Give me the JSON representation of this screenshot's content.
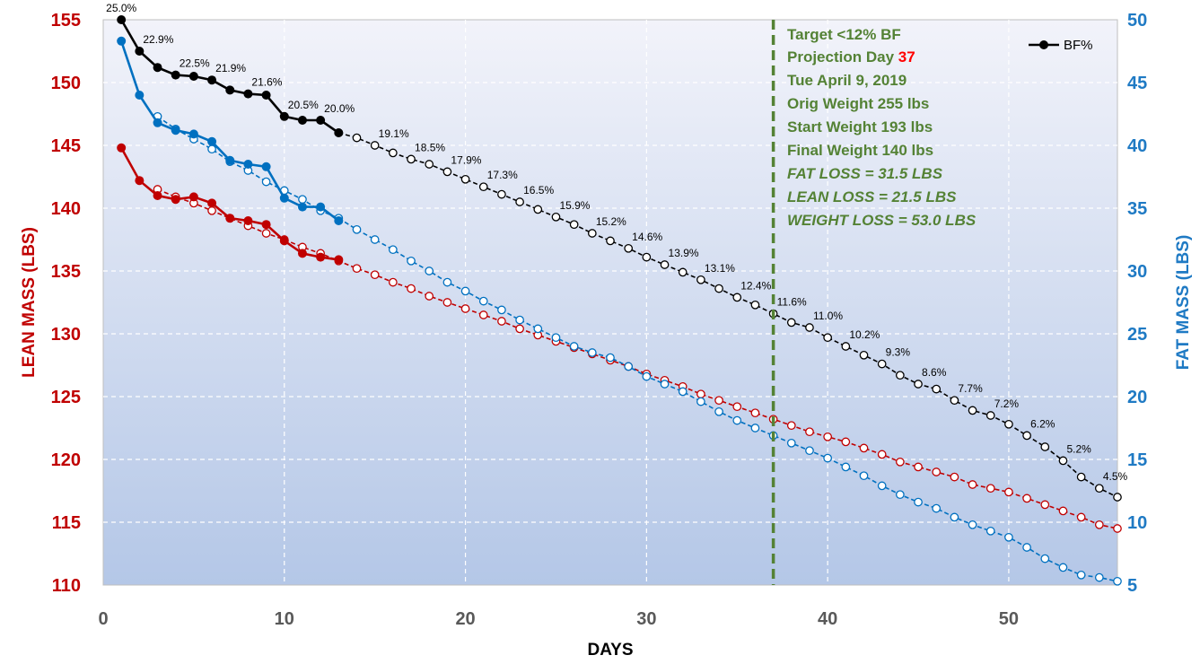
{
  "chart_data": {
    "type": "line",
    "xlabel": "DAYS",
    "ylabel_left": "LEAN MASS (LBS)",
    "ylabel_right": "FAT MASS (LBS)",
    "xlim": [
      0,
      56
    ],
    "ylim_left": [
      110,
      155
    ],
    "ylim_right": [
      5,
      50
    ],
    "x_ticks": [
      0,
      10,
      20,
      30,
      40,
      50
    ],
    "y_ticks_left": [
      110,
      115,
      120,
      125,
      130,
      135,
      140,
      145,
      150,
      155
    ],
    "y_ticks_right": [
      5,
      10,
      15,
      20,
      25,
      30,
      35,
      40,
      45,
      50
    ],
    "grid": true,
    "legend": {
      "position": "top-right",
      "entries": [
        "BF%"
      ]
    },
    "colors": {
      "lean": "#c00000",
      "fat": "#0070c0",
      "bf": "#000000",
      "target_line": "#548235",
      "plot_bg_top": "#f2f3fa",
      "plot_bg_bottom": "#b4c7e7"
    },
    "series": [
      {
        "name": "BF%",
        "axis": "right",
        "actual": {
          "x": [
            1,
            2,
            3,
            4,
            5,
            6,
            7,
            8,
            9,
            10,
            11,
            12,
            13
          ],
          "y": [
            50.0,
            47.5,
            46.2,
            45.6,
            45.5,
            45.2,
            44.4,
            44.1,
            44.0,
            42.3,
            42.0,
            42.0,
            41.0
          ]
        },
        "projection": {
          "x": [
            13,
            14,
            15,
            16,
            17,
            18,
            19,
            20,
            21,
            22,
            23,
            24,
            25,
            26,
            27,
            28,
            29,
            30,
            31,
            32,
            33,
            34,
            35,
            36,
            37,
            38,
            39,
            40,
            41,
            42,
            43,
            44,
            45,
            46,
            47,
            48,
            49,
            50,
            51,
            52,
            53,
            54,
            55,
            56
          ],
          "y": [
            41.0,
            40.6,
            40.0,
            39.4,
            38.9,
            38.5,
            37.9,
            37.3,
            36.7,
            36.1,
            35.5,
            34.9,
            34.3,
            33.7,
            33.0,
            32.4,
            31.8,
            31.1,
            30.5,
            29.9,
            29.3,
            28.6,
            27.9,
            27.3,
            26.6,
            25.9,
            25.5,
            24.7,
            24.0,
            23.3,
            22.6,
            21.7,
            21.0,
            20.6,
            19.7,
            18.9,
            18.5,
            17.8,
            16.9,
            16.0,
            14.9,
            13.6,
            12.7,
            12.0
          ]
        },
        "labels": [
          {
            "x": 1,
            "text": "25.0%"
          },
          {
            "x": 2,
            "text": "22.9%"
          },
          {
            "x": 4,
            "text": "22.5%"
          },
          {
            "x": 6,
            "text": "21.9%"
          },
          {
            "x": 8,
            "text": "21.6%"
          },
          {
            "x": 10,
            "text": "20.5%"
          },
          {
            "x": 12,
            "text": "20.0%"
          },
          {
            "x": 15,
            "text": "19.1%"
          },
          {
            "x": 17,
            "text": "18.5%"
          },
          {
            "x": 19,
            "text": "17.9%"
          },
          {
            "x": 21,
            "text": "17.3%"
          },
          {
            "x": 23,
            "text": "16.5%"
          },
          {
            "x": 25,
            "text": "15.9%"
          },
          {
            "x": 27,
            "text": "15.2%"
          },
          {
            "x": 29,
            "text": "14.6%"
          },
          {
            "x": 31,
            "text": "13.9%"
          },
          {
            "x": 33,
            "text": "13.1%"
          },
          {
            "x": 35,
            "text": "12.4%"
          },
          {
            "x": 37,
            "text": "11.6%"
          },
          {
            "x": 39,
            "text": "11.0%"
          },
          {
            "x": 41,
            "text": "10.2%"
          },
          {
            "x": 43,
            "text": "9.3%"
          },
          {
            "x": 45,
            "text": "8.6%"
          },
          {
            "x": 47,
            "text": "7.7%"
          },
          {
            "x": 49,
            "text": "7.2%"
          },
          {
            "x": 51,
            "text": "6.2%"
          },
          {
            "x": 53,
            "text": "5.2%"
          },
          {
            "x": 55,
            "text": "4.5%"
          }
        ]
      },
      {
        "axis": "left",
        "actual": {
          "x": [
            1,
            2,
            3,
            4,
            5,
            6,
            7,
            8,
            9,
            10,
            11,
            12,
            13
          ],
          "y": [
            144.8,
            142.2,
            141.0,
            140.7,
            140.9,
            140.4,
            139.2,
            139.0,
            138.7,
            137.4,
            136.4,
            136.1,
            135.9
          ]
        },
        "projection": {
          "x": [
            3,
            4,
            5,
            6,
            7,
            8,
            9,
            10,
            11,
            12,
            13,
            14,
            15,
            16,
            17,
            18,
            19,
            20,
            21,
            22,
            23,
            24,
            25,
            26,
            27,
            28,
            29,
            30,
            31,
            32,
            33,
            34,
            35,
            36,
            37,
            38,
            39,
            40,
            41,
            42,
            43,
            44,
            45,
            46,
            47,
            48,
            49,
            50,
            51,
            52,
            53,
            54,
            55,
            56
          ],
          "y": [
            141.5,
            140.9,
            140.4,
            139.8,
            139.2,
            138.6,
            138.0,
            137.5,
            136.9,
            136.4,
            135.8,
            135.2,
            134.7,
            134.1,
            133.6,
            133.0,
            132.5,
            132.0,
            131.5,
            131.0,
            130.4,
            129.9,
            129.4,
            128.9,
            128.4,
            127.9,
            127.4,
            126.8,
            126.3,
            125.8,
            125.2,
            124.7,
            124.2,
            123.7,
            123.2,
            122.7,
            122.2,
            121.8,
            121.4,
            120.9,
            120.4,
            119.8,
            119.4,
            119.0,
            118.6,
            118.0,
            117.7,
            117.4,
            116.9,
            116.4,
            115.9,
            115.4,
            114.8,
            114.5
          ]
        }
      },
      {
        "axis": "right",
        "actual": {
          "x": [
            1,
            2,
            3,
            4,
            5,
            6,
            7,
            8,
            9,
            10,
            11,
            12,
            13
          ],
          "y": [
            48.3,
            44.0,
            41.8,
            41.2,
            40.9,
            40.3,
            38.8,
            38.5,
            38.3,
            35.8,
            35.1,
            35.1,
            34.0
          ]
        },
        "projection": {
          "x": [
            3,
            4,
            5,
            6,
            7,
            8,
            9,
            10,
            11,
            12,
            13,
            14,
            15,
            16,
            17,
            18,
            19,
            20,
            21,
            22,
            23,
            24,
            25,
            26,
            27,
            28,
            29,
            30,
            31,
            32,
            33,
            34,
            35,
            36,
            37,
            38,
            39,
            40,
            41,
            42,
            43,
            44,
            45,
            46,
            47,
            48,
            49,
            50,
            51,
            52,
            53,
            54,
            55,
            56
          ],
          "y": [
            42.3,
            41.3,
            40.5,
            39.7,
            38.7,
            38.0,
            37.1,
            36.4,
            35.7,
            34.8,
            34.2,
            33.3,
            32.5,
            31.7,
            30.8,
            30.0,
            29.1,
            28.4,
            27.6,
            26.9,
            26.1,
            25.4,
            24.7,
            24.0,
            23.5,
            23.1,
            22.4,
            21.6,
            21.0,
            20.4,
            19.6,
            18.8,
            18.1,
            17.5,
            16.9,
            16.3,
            15.7,
            15.1,
            14.4,
            13.7,
            12.9,
            12.2,
            11.6,
            11.1,
            10.4,
            9.8,
            9.3,
            8.8,
            8.0,
            7.1,
            6.4,
            5.8,
            5.6,
            5.3
          ]
        }
      }
    ],
    "target_line": {
      "x": 37
    },
    "annotations": [
      {
        "text": "Target <12% BF",
        "italic": false
      },
      {
        "text": "Projection Day ",
        "highlight": "37",
        "italic": false
      },
      {
        "text": "Tue April 9, 2019",
        "italic": false
      },
      {
        "text": "Orig Weight 255 lbs",
        "italic": false
      },
      {
        "text": "Start Weight 193 lbs",
        "italic": false
      },
      {
        "text": "Final Weight 140 lbs",
        "italic": false
      },
      {
        "text": "FAT LOSS = 31.5 LBS",
        "italic": true
      },
      {
        "text": "LEAN LOSS = 21.5 LBS",
        "italic": true
      },
      {
        "text": "WEIGHT LOSS = 53.0 LBS",
        "italic": true
      }
    ]
  }
}
